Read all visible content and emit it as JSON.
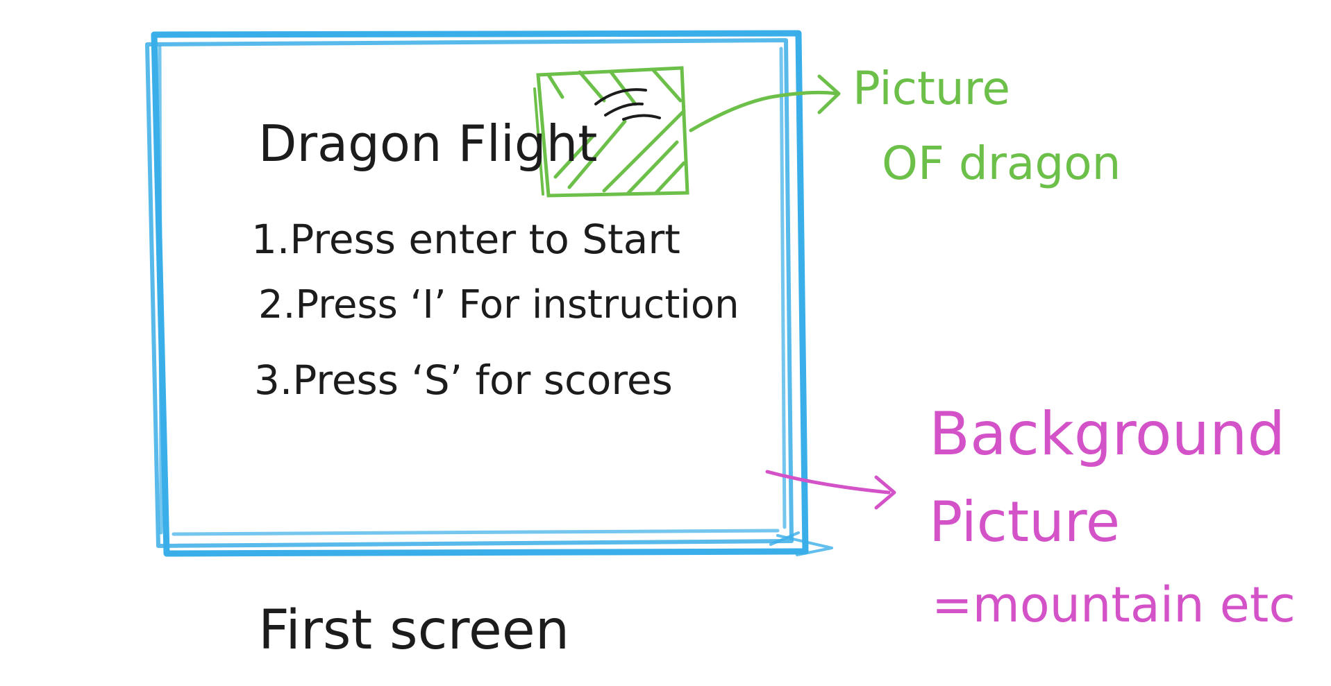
{
  "screen": {
    "title": "Dragon Flight",
    "menu": [
      "1.Press enter to Start",
      "2.Press ‘I’ For instruction",
      "3.Press ‘S’ for scores"
    ],
    "caption": "First screen"
  },
  "annotations": {
    "dragon_picture": [
      "Picture",
      "OF dragon"
    ],
    "background_picture": [
      "Background",
      "Picture",
      "=mountain etc"
    ]
  },
  "colors": {
    "frame": "#3aaee8",
    "dragon_annotation": "#6cc04a",
    "background_annotation": "#d452c8",
    "text": "#1c1c1c"
  }
}
